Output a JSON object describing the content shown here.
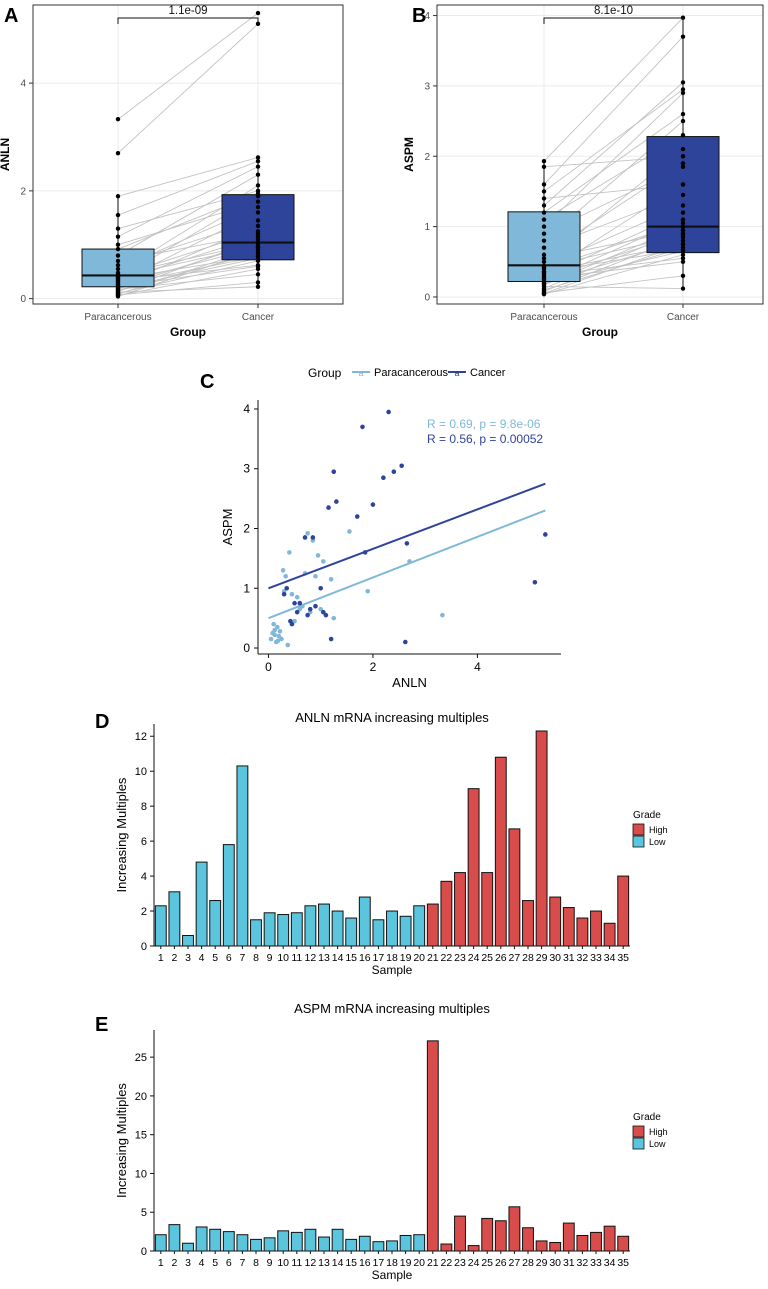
{
  "panel_labels": [
    "A",
    "B",
    "C",
    "D",
    "E"
  ],
  "colors": {
    "paracancerous": "#7fb8d8",
    "cancer": "#2e449a",
    "grade_high": "#d94c4c",
    "grade_low": "#5bc5de",
    "pair_line": "#c3c3c3",
    "grid": "#ebebeb"
  },
  "chart_data": [
    {
      "id": "A",
      "type": "box_paired",
      "ylabel": "ANLN",
      "xlabel": "Group",
      "categories": [
        "Paracancerous",
        "Cancer"
      ],
      "ylim": [
        -0.1,
        5.45
      ],
      "yticks": [
        0,
        2,
        4
      ],
      "pvalue": "1.1e-09",
      "boxes": [
        {
          "q1": 0.22,
          "median": 0.43,
          "q3": 0.92,
          "whisker_low": 0.05,
          "whisker_high": 1.9
        },
        {
          "q1": 0.72,
          "median": 1.04,
          "q3": 1.93,
          "whisker_low": 0.2,
          "whisker_high": 2.62
        }
      ],
      "pairs": [
        [
          0.04,
          0.9
        ],
        [
          0.06,
          0.55
        ],
        [
          0.07,
          0.3
        ],
        [
          0.08,
          0.95
        ],
        [
          0.1,
          0.7
        ],
        [
          0.12,
          0.22
        ],
        [
          0.13,
          1.1
        ],
        [
          0.15,
          0.85
        ],
        [
          0.17,
          0.45
        ],
        [
          0.19,
          0.75
        ],
        [
          0.2,
          1.05
        ],
        [
          0.22,
          0.6
        ],
        [
          0.24,
          1.35
        ],
        [
          0.26,
          0.78
        ],
        [
          0.28,
          0.95
        ],
        [
          0.3,
          1.6
        ],
        [
          0.32,
          0.62
        ],
        [
          0.34,
          1.15
        ],
        [
          0.36,
          0.8
        ],
        [
          0.38,
          1.9
        ],
        [
          0.4,
          0.98
        ],
        [
          0.42,
          1.25
        ],
        [
          0.45,
          1.03
        ],
        [
          0.48,
          2.1
        ],
        [
          0.55,
          1.7
        ],
        [
          0.62,
          1.45
        ],
        [
          0.7,
          1.2
        ],
        [
          0.8,
          2.3
        ],
        [
          0.92,
          1.95
        ],
        [
          1.0,
          1.8
        ],
        [
          1.15,
          2.45
        ],
        [
          1.3,
          2.0
        ],
        [
          1.55,
          2.55
        ],
        [
          1.9,
          2.62
        ],
        [
          2.7,
          5.1
        ],
        [
          3.33,
          5.3
        ]
      ]
    },
    {
      "id": "B",
      "type": "box_paired",
      "ylabel": "ASPM",
      "xlabel": "Group",
      "categories": [
        "Paracancerous",
        "Cancer"
      ],
      "ylim": [
        -0.1,
        4.15
      ],
      "yticks": [
        0,
        1,
        2,
        3,
        4
      ],
      "pvalue": "8.1e-10",
      "boxes": [
        {
          "q1": 0.22,
          "median": 0.45,
          "q3": 1.21,
          "whisker_low": 0.05,
          "whisker_high": 1.95
        },
        {
          "q1": 0.63,
          "median": 1.0,
          "q3": 2.28,
          "whisker_low": 0.12,
          "whisker_high": 3.97
        }
      ],
      "pairs": [
        [
          0.04,
          0.6
        ],
        [
          0.05,
          0.75
        ],
        [
          0.06,
          0.3
        ],
        [
          0.08,
          0.85
        ],
        [
          0.1,
          0.7
        ],
        [
          0.12,
          0.95
        ],
        [
          0.15,
          0.12
        ],
        [
          0.17,
          1.0
        ],
        [
          0.19,
          0.65
        ],
        [
          0.2,
          0.8
        ],
        [
          0.22,
          1.1
        ],
        [
          0.25,
          0.9
        ],
        [
          0.28,
          1.2
        ],
        [
          0.3,
          0.55
        ],
        [
          0.33,
          1.6
        ],
        [
          0.36,
          0.75
        ],
        [
          0.4,
          1.05
        ],
        [
          0.44,
          1.3
        ],
        [
          0.5,
          2.1
        ],
        [
          0.55,
          0.95
        ],
        [
          0.6,
          1.9
        ],
        [
          0.7,
          1.45
        ],
        [
          0.8,
          2.5
        ],
        [
          0.9,
          1.85
        ],
        [
          1.0,
          2.9
        ],
        [
          1.1,
          2.3
        ],
        [
          1.2,
          2.6
        ],
        [
          1.3,
          3.05
        ],
        [
          1.4,
          1.6
        ],
        [
          1.5,
          2.95
        ],
        [
          1.6,
          3.7
        ],
        [
          1.85,
          2.0
        ],
        [
          1.93,
          3.97
        ],
        [
          0.35,
          0.68
        ],
        [
          0.42,
          0.88
        ],
        [
          0.26,
          0.5
        ]
      ]
    },
    {
      "id": "C",
      "type": "scatter",
      "title": "",
      "xlabel": "ANLN",
      "ylabel": "ASPM",
      "xlim": [
        -0.2,
        5.6
      ],
      "ylim": [
        -0.1,
        4.15
      ],
      "xticks": [
        0,
        2,
        4
      ],
      "yticks": [
        0,
        1,
        2,
        3,
        4
      ],
      "legend": {
        "title": "Group",
        "entries": [
          "Paracancerous",
          "Cancer"
        ],
        "position": "top"
      },
      "series": [
        {
          "name": "Paracancerous",
          "annotation": "R = 0.69, p = 9.8e-06",
          "fit": {
            "intercept": 0.5,
            "slope": 0.34
          },
          "points": [
            [
              0.05,
              0.15
            ],
            [
              0.08,
              0.25
            ],
            [
              0.1,
              0.4
            ],
            [
              0.12,
              0.3
            ],
            [
              0.15,
              0.1
            ],
            [
              0.17,
              0.35
            ],
            [
              0.2,
              0.2
            ],
            [
              0.22,
              0.28
            ],
            [
              0.25,
              0.15
            ],
            [
              0.28,
              1.3
            ],
            [
              0.3,
              0.95
            ],
            [
              0.33,
              1.2
            ],
            [
              0.37,
              0.05
            ],
            [
              0.4,
              1.6
            ],
            [
              0.45,
              0.9
            ],
            [
              0.5,
              0.45
            ],
            [
              0.55,
              0.85
            ],
            [
              0.6,
              0.75
            ],
            [
              0.65,
              0.7
            ],
            [
              0.7,
              1.25
            ],
            [
              0.75,
              1.92
            ],
            [
              0.8,
              0.6
            ],
            [
              0.85,
              1.8
            ],
            [
              0.9,
              1.2
            ],
            [
              0.95,
              1.55
            ],
            [
              1.0,
              0.65
            ],
            [
              1.05,
              1.45
            ],
            [
              1.2,
              1.15
            ],
            [
              1.25,
              0.5
            ],
            [
              1.55,
              1.95
            ],
            [
              1.9,
              0.95
            ],
            [
              2.7,
              1.45
            ],
            [
              3.33,
              0.55
            ],
            [
              0.12,
              0.22
            ],
            [
              0.18,
              0.12
            ],
            [
              0.6,
              0.65
            ]
          ]
        },
        {
          "name": "Cancer",
          "annotation": "R = 0.56, p = 0.00052",
          "fit": {
            "intercept": 1.0,
            "slope": 0.33
          },
          "points": [
            [
              0.3,
              0.9
            ],
            [
              0.35,
              1.0
            ],
            [
              0.42,
              0.45
            ],
            [
              0.45,
              0.4
            ],
            [
              0.5,
              0.75
            ],
            [
              0.55,
              0.6
            ],
            [
              0.6,
              0.75
            ],
            [
              0.7,
              1.85
            ],
            [
              0.75,
              0.55
            ],
            [
              0.8,
              0.65
            ],
            [
              0.85,
              1.85
            ],
            [
              0.9,
              0.7
            ],
            [
              1.0,
              1.0
            ],
            [
              1.05,
              0.6
            ],
            [
              1.1,
              0.55
            ],
            [
              1.15,
              2.35
            ],
            [
              1.2,
              0.15
            ],
            [
              1.25,
              2.95
            ],
            [
              1.3,
              2.45
            ],
            [
              1.7,
              2.2
            ],
            [
              1.8,
              3.7
            ],
            [
              1.85,
              1.6
            ],
            [
              2.0,
              2.4
            ],
            [
              2.2,
              2.85
            ],
            [
              2.3,
              3.95
            ],
            [
              2.4,
              2.95
            ],
            [
              2.55,
              3.05
            ],
            [
              2.62,
              0.1
            ],
            [
              2.65,
              1.75
            ],
            [
              5.1,
              1.1
            ],
            [
              5.3,
              1.9
            ]
          ]
        }
      ]
    },
    {
      "id": "D",
      "type": "bar",
      "title": "ANLN mRNA increasing multiples",
      "xlabel": "Sample",
      "ylabel": "Increasing Multiples",
      "ylim": [
        0,
        12.7
      ],
      "yticks": [
        0,
        2,
        4,
        6,
        8,
        10,
        12
      ],
      "legend": {
        "title": "Grade",
        "entries": [
          "High",
          "Low"
        ],
        "position": "right"
      },
      "categories": [
        "1",
        "2",
        "3",
        "4",
        "5",
        "6",
        "7",
        "8",
        "9",
        "10",
        "11",
        "12",
        "13",
        "14",
        "15",
        "16",
        "17",
        "18",
        "19",
        "20",
        "21",
        "22",
        "23",
        "24",
        "25",
        "26",
        "27",
        "28",
        "29",
        "30",
        "31",
        "32",
        "33",
        "34",
        "35"
      ],
      "values": [
        2.3,
        3.1,
        0.6,
        4.8,
        2.6,
        5.8,
        10.3,
        1.5,
        1.9,
        1.8,
        1.9,
        2.3,
        2.4,
        2.0,
        1.6,
        2.8,
        1.5,
        2.0,
        1.7,
        2.3,
        2.4,
        3.7,
        4.2,
        9.0,
        4.2,
        10.8,
        6.7,
        2.6,
        12.3,
        2.8,
        2.2,
        1.6,
        2.0,
        1.3,
        4.0
      ],
      "grades": [
        "Low",
        "Low",
        "Low",
        "Low",
        "Low",
        "Low",
        "Low",
        "Low",
        "Low",
        "Low",
        "Low",
        "Low",
        "Low",
        "Low",
        "Low",
        "Low",
        "Low",
        "Low",
        "Low",
        "Low",
        "High",
        "High",
        "High",
        "High",
        "High",
        "High",
        "High",
        "High",
        "High",
        "High",
        "High",
        "High",
        "High",
        "High",
        "High"
      ]
    },
    {
      "id": "E",
      "type": "bar",
      "title": "ASPM mRNA increasing multiples",
      "xlabel": "Sample",
      "ylabel": "Increasing Multiples",
      "ylim": [
        0,
        28.5
      ],
      "yticks": [
        0,
        5,
        10,
        15,
        20,
        25
      ],
      "legend": {
        "title": "Grade",
        "entries": [
          "High",
          "Low"
        ],
        "position": "right"
      },
      "categories": [
        "1",
        "2",
        "3",
        "4",
        "5",
        "6",
        "7",
        "8",
        "9",
        "10",
        "11",
        "12",
        "13",
        "14",
        "15",
        "16",
        "17",
        "18",
        "19",
        "20",
        "21",
        "22",
        "23",
        "24",
        "25",
        "26",
        "27",
        "28",
        "29",
        "30",
        "31",
        "32",
        "33",
        "34",
        "35"
      ],
      "values": [
        2.1,
        3.4,
        1.0,
        3.1,
        2.8,
        2.5,
        2.1,
        1.5,
        1.7,
        2.6,
        2.4,
        2.8,
        1.8,
        2.8,
        1.5,
        1.9,
        1.2,
        1.3,
        2.0,
        2.1,
        27.1,
        0.9,
        4.5,
        0.7,
        4.2,
        3.9,
        5.7,
        3.0,
        1.3,
        1.1,
        3.6,
        2.0,
        2.4,
        3.2,
        1.9
      ],
      "grades": [
        "Low",
        "Low",
        "Low",
        "Low",
        "Low",
        "Low",
        "Low",
        "Low",
        "Low",
        "Low",
        "Low",
        "Low",
        "Low",
        "Low",
        "Low",
        "Low",
        "Low",
        "Low",
        "Low",
        "Low",
        "High",
        "High",
        "High",
        "High",
        "High",
        "High",
        "High",
        "High",
        "High",
        "High",
        "High",
        "High",
        "High",
        "High",
        "High"
      ]
    }
  ]
}
